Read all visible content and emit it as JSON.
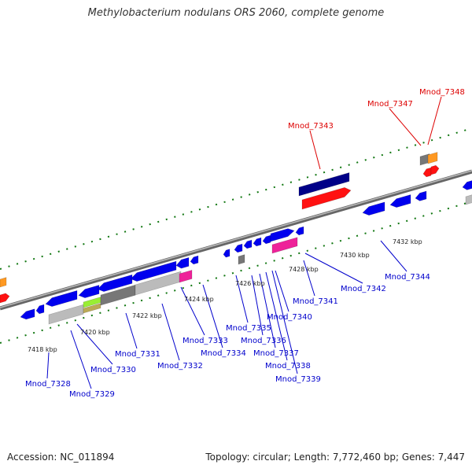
{
  "title": "Methylobacterium nodulans ORS 2060, complete genome",
  "footer": {
    "accession": "Accession: NC_011894",
    "topology": "Topology: circular; Length: 7,772,460 bp; Genes: 7,447"
  },
  "colors": {
    "forward": "#0000ee",
    "reverse": "#0000ee",
    "rna": "#ff2222",
    "pseudo": "#888888",
    "label_blue": "#0000cc",
    "label_red": "#dd0000",
    "backbone": "#888888",
    "tick": "#117711"
  },
  "scale_labels": [
    "7418 kbp",
    "7420 kbp",
    "7422 kbp",
    "7424 kbp",
    "7426 kbp",
    "7428 kbp",
    "7430 kbp",
    "7432 kbp"
  ],
  "gene_labels": [
    {
      "text": "Mnod_7328",
      "color": "blue"
    },
    {
      "text": "Mnod_7329",
      "color": "blue"
    },
    {
      "text": "Mnod_7330",
      "color": "blue"
    },
    {
      "text": "Mnod_7331",
      "color": "blue"
    },
    {
      "text": "Mnod_7332",
      "color": "blue"
    },
    {
      "text": "Mnod_7333",
      "color": "blue"
    },
    {
      "text": "Mnod_7334",
      "color": "blue"
    },
    {
      "text": "Mnod_7335",
      "color": "blue"
    },
    {
      "text": "Mnod_7336",
      "color": "blue"
    },
    {
      "text": "Mnod_7337",
      "color": "blue"
    },
    {
      "text": "Mnod_7338",
      "color": "blue"
    },
    {
      "text": "Mnod_7339",
      "color": "blue"
    },
    {
      "text": "Mnod_7340",
      "color": "blue"
    },
    {
      "text": "Mnod_7341",
      "color": "blue"
    },
    {
      "text": "Mnod_7342",
      "color": "blue"
    },
    {
      "text": "Mnod_7344",
      "color": "blue"
    },
    {
      "text": "Mnod_7343",
      "color": "red"
    },
    {
      "text": "Mnod_7347",
      "color": "red"
    },
    {
      "text": "Mnod_7348",
      "color": "red"
    }
  ]
}
